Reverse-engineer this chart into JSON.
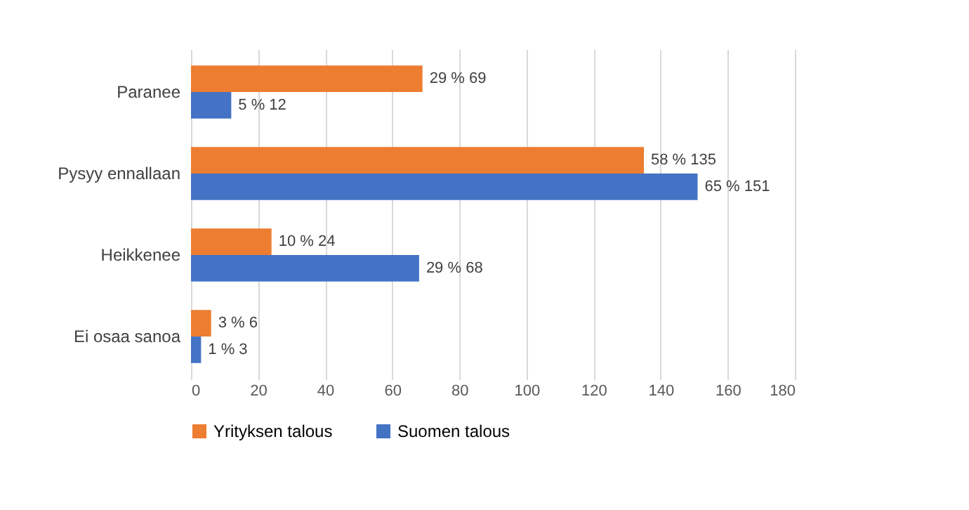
{
  "chart_data": {
    "type": "bar",
    "orientation": "horizontal",
    "categories": [
      "Paranee",
      "Pysyy ennallaan",
      "Heikkenee",
      "Ei osaa sanoa"
    ],
    "series": [
      {
        "name": "Yrityksen talous",
        "color": "#ed7d31",
        "values": [
          69,
          135,
          24,
          6
        ],
        "value_labels": [
          "29 % 69",
          "58 % 135",
          "10 % 24",
          "3 % 6"
        ]
      },
      {
        "name": "Suomen talous",
        "color": "#4472c4",
        "values": [
          12,
          151,
          68,
          3
        ],
        "value_labels": [
          "5 % 12",
          "65 % 151",
          "29 % 68",
          "1 % 3"
        ]
      }
    ],
    "xlim": [
      0,
      180
    ],
    "xticks": [
      0,
      20,
      40,
      60,
      80,
      100,
      120,
      140,
      160,
      180
    ],
    "grid": "x",
    "legend": "bottom"
  }
}
